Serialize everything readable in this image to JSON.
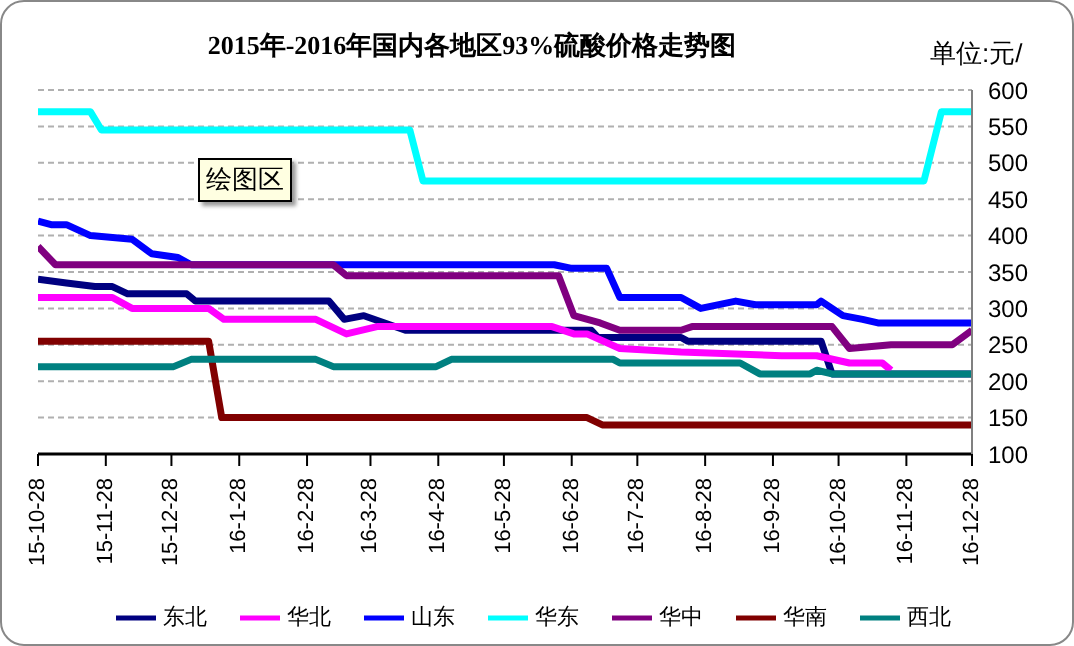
{
  "chart_data": {
    "type": "line",
    "title": "2015年-2016年国内各地区93%硫酸价格走势图",
    "annotations": [
      "单位:元/",
      "绘图区"
    ],
    "xlim": [
      "2015-10-28",
      "2016-12-28"
    ],
    "xticks": [
      {
        "value": "2015-10-28",
        "label": "15-10-28"
      },
      {
        "value": "2015-11-28",
        "label": "15-11-28"
      },
      {
        "value": "2015-12-28",
        "label": "15-12-28"
      },
      {
        "value": "2016-01-28",
        "label": "16-1-28"
      },
      {
        "value": "2016-02-28",
        "label": "16-2-28"
      },
      {
        "value": "2016-03-28",
        "label": "16-3-28"
      },
      {
        "value": "2016-04-28",
        "label": "16-4-28"
      },
      {
        "value": "2016-05-28",
        "label": "16-5-28"
      },
      {
        "value": "2016-06-28",
        "label": "16-6-28"
      },
      {
        "value": "2016-07-28",
        "label": "16-7-28"
      },
      {
        "value": "2016-08-28",
        "label": "16-8-28"
      },
      {
        "value": "2016-09-28",
        "label": "16-9-28"
      },
      {
        "value": "2016-10-28",
        "label": "16-10-28"
      },
      {
        "value": "2016-11-28",
        "label": "16-11-28"
      },
      {
        "value": "2016-12-28",
        "label": "16-12-28"
      }
    ],
    "ylim": [
      100,
      600
    ],
    "yticks": [
      100,
      150,
      200,
      250,
      300,
      350,
      400,
      450,
      500,
      550,
      600
    ],
    "grid": "y",
    "legend": "bottom",
    "marker": "none",
    "line_style": "solid",
    "series": [
      {
        "name": "东北",
        "color": "#000080",
        "x": [
          "2015-10-28",
          "2015-11-10",
          "2015-11-23",
          "2015-12-01",
          "2015-12-08",
          "2016-01-04",
          "2016-01-08",
          "2016-03-09",
          "2016-03-16",
          "2016-03-25",
          "2016-04-13",
          "2016-07-07",
          "2016-07-10",
          "2016-08-17",
          "2016-08-20",
          "2016-10-20",
          "2016-10-25",
          "2016-12-28"
        ],
        "values": [
          340,
          335,
          330,
          330,
          320,
          320,
          310,
          310,
          285,
          290,
          270,
          270,
          260,
          260,
          255,
          255,
          210,
          210
        ]
      },
      {
        "name": "华北",
        "color": "#ff00ff",
        "x": [
          "2015-10-28",
          "2015-12-01",
          "2015-12-10",
          "2016-01-14",
          "2016-01-21",
          "2016-03-03",
          "2016-03-17",
          "2016-03-31",
          "2016-06-19",
          "2016-06-29",
          "2016-07-05",
          "2016-07-20",
          "2016-08-17",
          "2016-10-02",
          "2016-10-18",
          "2016-11-02",
          "2016-11-17",
          "2016-11-21"
        ],
        "values": [
          315,
          315,
          300,
          300,
          285,
          285,
          265,
          275,
          275,
          265,
          265,
          245,
          240,
          235,
          235,
          225,
          225,
          215
        ]
      },
      {
        "name": "山东",
        "color": "#0000ff",
        "x": [
          "2015-10-28",
          "2015-11-03",
          "2015-11-10",
          "2015-11-21",
          "2015-12-10",
          "2015-12-19",
          "2015-12-31",
          "2016-01-06",
          "2016-06-20",
          "2016-06-28",
          "2016-07-14",
          "2016-07-20",
          "2016-08-17",
          "2016-08-26",
          "2016-09-11",
          "2016-09-20",
          "2016-10-18",
          "2016-10-20",
          "2016-10-30",
          "2016-11-08",
          "2016-11-15",
          "2016-12-28"
        ],
        "values": [
          420,
          415,
          415,
          400,
          395,
          375,
          370,
          360,
          360,
          355,
          355,
          315,
          315,
          300,
          310,
          305,
          305,
          310,
          290,
          285,
          280,
          280
        ]
      },
      {
        "name": "华东",
        "color": "#00ffff",
        "x": [
          "2015-10-28",
          "2015-11-21",
          "2015-11-26",
          "2016-04-15",
          "2016-04-21",
          "2016-12-06",
          "2016-12-14",
          "2016-12-28"
        ],
        "values": [
          570,
          570,
          545,
          545,
          475,
          475,
          570,
          570
        ]
      },
      {
        "name": "华中",
        "color": "#800080",
        "x": [
          "2015-10-28",
          "2015-11-05",
          "2016-03-11",
          "2016-03-17",
          "2016-06-22",
          "2016-06-29",
          "2016-07-11",
          "2016-07-20",
          "2016-08-17",
          "2016-08-22",
          "2016-10-25",
          "2016-11-02",
          "2016-11-21",
          "2016-12-19",
          "2016-12-28"
        ],
        "values": [
          385,
          360,
          360,
          345,
          345,
          290,
          280,
          270,
          270,
          275,
          275,
          245,
          250,
          250,
          270
        ]
      },
      {
        "name": "华南",
        "color": "#800000",
        "x": [
          "2015-10-28",
          "2016-01-14",
          "2016-01-20",
          "2016-07-05",
          "2016-07-12",
          "2016-12-28"
        ],
        "values": [
          255,
          255,
          150,
          150,
          140,
          140
        ]
      },
      {
        "name": "西北",
        "color": "#008080",
        "x": [
          "2015-10-28",
          "2015-12-29",
          "2016-01-06",
          "2016-03-03",
          "2016-03-11",
          "2016-04-27",
          "2016-05-04",
          "2016-07-17",
          "2016-07-20",
          "2016-09-13",
          "2016-09-22",
          "2016-10-15",
          "2016-10-18",
          "2016-10-25",
          "2016-12-28"
        ],
        "values": [
          220,
          220,
          230,
          230,
          220,
          220,
          230,
          230,
          225,
          225,
          210,
          210,
          215,
          210,
          210
        ]
      }
    ]
  }
}
